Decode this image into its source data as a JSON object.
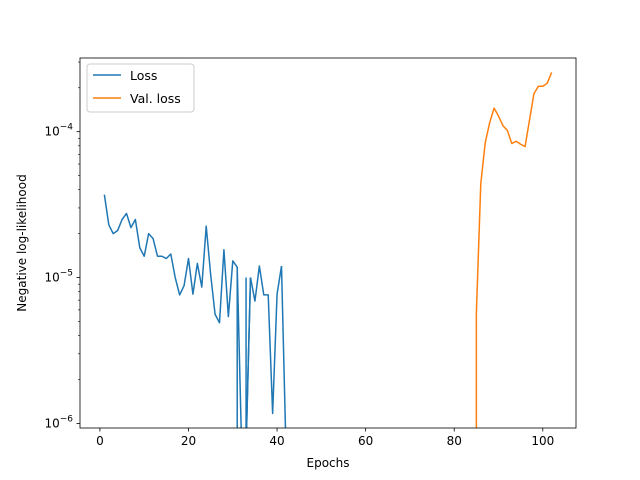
{
  "chart_data": {
    "type": "line",
    "xlabel": "Epochs",
    "ylabel": "Negative log-likelihood",
    "yscale": "log",
    "xlim": [
      -4.5,
      107.5
    ],
    "ylim": [
      9.3e-07,
      0.00032
    ],
    "x_ticks": [
      0,
      20,
      40,
      60,
      80,
      100
    ],
    "x_tick_labels": [
      "0",
      "20",
      "40",
      "60",
      "80",
      "100"
    ],
    "y_ticks": [
      1e-06,
      1e-05,
      0.0001
    ],
    "y_tick_labels": [
      {
        "base": "10",
        "exp": "−6"
      },
      {
        "base": "10",
        "exp": "−5"
      },
      {
        "base": "10",
        "exp": "−4"
      }
    ],
    "legend": {
      "position": "upper left"
    },
    "series": [
      {
        "name": "Loss",
        "color": "#1f77b4",
        "x": [
          1,
          2,
          3,
          4,
          5,
          6,
          7,
          8,
          9,
          10,
          11,
          12,
          13,
          14,
          15,
          16,
          17,
          18,
          19,
          20,
          21,
          22,
          23,
          24,
          25,
          26,
          27,
          28,
          29,
          30,
          31,
          32,
          33,
          34,
          35,
          36,
          37,
          38,
          39,
          40,
          41
        ],
        "y": [
          3.7e-05,
          2.3e-05,
          2e-05,
          2.1e-05,
          2.5e-05,
          2.75e-05,
          2.2e-05,
          2.5e-05,
          1.6e-05,
          1.4e-05,
          2e-05,
          1.85e-05,
          1.4e-05,
          1.4e-05,
          1.35e-05,
          1.45e-05,
          1e-05,
          7.6e-06,
          8.8e-06,
          1.35e-05,
          7.7e-06,
          1.25e-05,
          8.6e-06,
          2.25e-05,
          1.05e-05,
          5.6e-06,
          4.9e-06,
          1.55e-05,
          5.4e-06,
          1.3e-05,
          1.18e-05,
          null,
          null,
          1e-05,
          6.9e-06,
          1.2e-05,
          7.6e-06,
          7.6e-06,
          1.17e-06,
          7.7e-06,
          1.2e-05
        ],
        "drop_to_bottom": [
          [
            31,
            32
          ],
          [
            33,
            34
          ],
          [
            41,
            42
          ]
        ]
      },
      {
        "name": "Val. loss",
        "color": "#ff7f0e",
        "x": [
          85,
          86,
          87,
          88,
          89,
          90,
          91,
          92,
          93,
          94,
          95,
          96,
          97,
          98,
          99,
          100,
          101,
          102
        ],
        "y": [
          5.7e-06,
          4.4e-05,
          8.4e-05,
          0.000115,
          0.000145,
          0.000128,
          0.00011,
          0.000102,
          8.3e-05,
          8.6e-05,
          8.2e-05,
          7.9e-05,
          0.00012,
          0.000182,
          0.000205,
          0.000205,
          0.000215,
          0.000255
        ],
        "rise_from_bottom_at": 85
      }
    ]
  }
}
